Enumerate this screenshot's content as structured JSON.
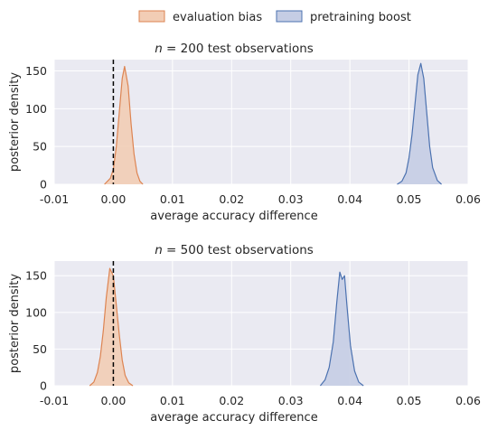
{
  "legend": {
    "placement": "top-center",
    "items": [
      {
        "label": "evaluation bias",
        "fill": "#f2cdb5",
        "edge": "#dd8452"
      },
      {
        "label": "pretraining boost",
        "fill": "#c5cde4",
        "edge": "#4c72b0"
      }
    ]
  },
  "colors": {
    "plot_bg": "#eaeaf2",
    "grid": "#ffffff",
    "text": "#262626",
    "zero_line": "#000000"
  },
  "chart_data": [
    {
      "type": "area",
      "title_prefix": "n = ",
      "n": "200",
      "title_suffix": "test observations",
      "xlabel": "average accuracy difference",
      "ylabel": "posterior density",
      "xlim": [
        -0.01,
        0.06
      ],
      "ylim": [
        0,
        165
      ],
      "xticks": [
        -0.01,
        0.0,
        0.01,
        0.02,
        0.03,
        0.04,
        0.05,
        0.06
      ],
      "xtick_labels": [
        "-0.01",
        "0.00",
        "0.01",
        "0.02",
        "0.03",
        "0.04",
        "0.05",
        "0.06"
      ],
      "yticks": [
        0,
        50,
        100,
        150
      ],
      "ytick_labels": [
        "0",
        "50",
        "100",
        "150"
      ],
      "grid": true,
      "vline_x": 0.0,
      "series": [
        {
          "name": "evaluation bias",
          "x": [
            -0.0015,
            -0.0005,
            0.0,
            0.0005,
            0.001,
            0.0015,
            0.0019,
            0.0025,
            0.003,
            0.0035,
            0.004,
            0.0045,
            0.005
          ],
          "y": [
            0,
            8,
            20,
            50,
            95,
            140,
            156,
            130,
            80,
            40,
            15,
            4,
            0
          ]
        },
        {
          "name": "pretraining boost",
          "x": [
            0.048,
            0.0488,
            0.0495,
            0.05,
            0.0505,
            0.051,
            0.0515,
            0.052,
            0.0525,
            0.053,
            0.0535,
            0.054,
            0.0548,
            0.0555
          ],
          "y": [
            0,
            4,
            15,
            35,
            65,
            105,
            145,
            160,
            140,
            95,
            50,
            22,
            5,
            0
          ]
        }
      ]
    },
    {
      "type": "area",
      "title_prefix": "n = ",
      "n": "500",
      "title_suffix": "test observations",
      "xlabel": "average accuracy difference",
      "ylabel": "posterior density",
      "xlim": [
        -0.01,
        0.06
      ],
      "ylim": [
        0,
        170
      ],
      "xticks": [
        -0.01,
        0.0,
        0.01,
        0.02,
        0.03,
        0.04,
        0.05,
        0.06
      ],
      "xtick_labels": [
        "-0.01",
        "0.00",
        "0.01",
        "0.02",
        "0.03",
        "0.04",
        "0.05",
        "0.06"
      ],
      "yticks": [
        0,
        50,
        100,
        150
      ],
      "ytick_labels": [
        "0",
        "50",
        "100",
        "150"
      ],
      "grid": true,
      "vline_x": 0.0,
      "series": [
        {
          "name": "evaluation bias",
          "x": [
            -0.004,
            -0.0033,
            -0.0027,
            -0.0022,
            -0.0017,
            -0.0012,
            -0.0006,
            0.0,
            0.0005,
            0.001,
            0.0015,
            0.002,
            0.0026,
            0.0033
          ],
          "y": [
            0,
            5,
            18,
            40,
            75,
            120,
            160,
            150,
            110,
            70,
            35,
            14,
            4,
            0
          ]
        },
        {
          "name": "pretraining boost",
          "x": [
            0.035,
            0.0358,
            0.0365,
            0.0372,
            0.0378,
            0.0383,
            0.0387,
            0.0391,
            0.0395,
            0.0401,
            0.0408,
            0.0415,
            0.0423
          ],
          "y": [
            0,
            8,
            25,
            60,
            115,
            155,
            145,
            150,
            110,
            55,
            20,
            5,
            0
          ]
        }
      ]
    }
  ]
}
